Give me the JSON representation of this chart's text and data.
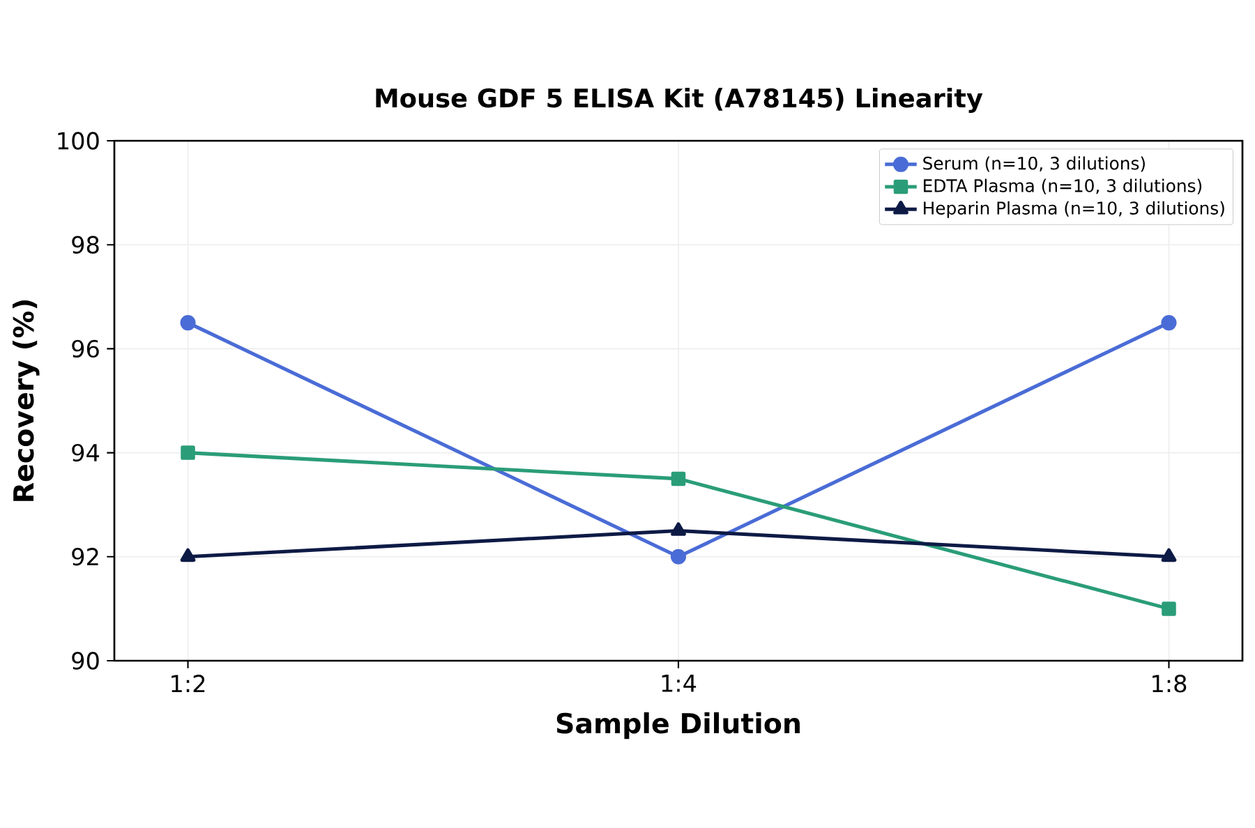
{
  "chart_data": {
    "type": "line",
    "title": "Mouse GDF 5 ELISA Kit (A78145) Linearity",
    "xlabel": "Sample Dilution",
    "ylabel": "Recovery (%)",
    "categories": [
      "1:2",
      "1:4",
      "1:8"
    ],
    "series": [
      {
        "name": "Serum (n=10, 3 dilutions)",
        "color": "#4a6cd6",
        "marker": "circle",
        "values": [
          96.5,
          92,
          96.5
        ]
      },
      {
        "name": "EDTA Plasma (n=10, 3 dilutions)",
        "color": "#2a9d78",
        "marker": "square",
        "values": [
          94,
          93.5,
          91
        ]
      },
      {
        "name": "Heparin Plasma (n=10, 3 dilutions)",
        "color": "#0d1a45",
        "marker": "triangle",
        "values": [
          92,
          92.5,
          92
        ]
      }
    ],
    "ylim": [
      90,
      100
    ],
    "yticks": [
      90,
      92,
      94,
      96,
      98,
      100
    ],
    "grid": true,
    "legend": "top right",
    "line_style": "solid"
  }
}
